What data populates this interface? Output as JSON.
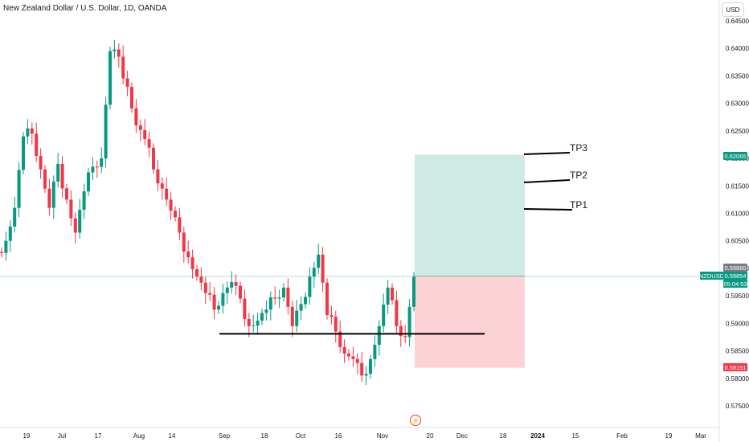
{
  "header": {
    "symbol_title": "New Zealand Dollar / U.S. Dollar, 1D, OANDA"
  },
  "axis": {
    "currency_button": "USD"
  },
  "events": {
    "flash_icon": "lightning-icon"
  },
  "colors": {
    "up": "#089981",
    "down": "#f23645",
    "profit_zone": "#cfeae5",
    "loss_zone": "#fbd3d6",
    "price_line": "#089981"
  },
  "chart_data": {
    "type": "candlestick",
    "title": "New Zealand Dollar / U.S. Dollar, 1D, OANDA",
    "y_ticks": [
      "0.64500",
      "0.64000",
      "0.63500",
      "0.63000",
      "0.62500",
      "0.62000",
      "0.61500",
      "0.61000",
      "0.60500",
      "0.60000",
      "0.59500",
      "0.59000",
      "0.58500",
      "0.58000",
      "0.57500"
    ],
    "x_ticks": [
      "19",
      "Jul",
      "17",
      "Aug",
      "14",
      "Sep",
      "18",
      "Oct",
      "16",
      "Nov",
      "20",
      "Dec",
      "18",
      "2024",
      "15",
      "Feb",
      "19",
      "Mar"
    ],
    "ylim": [
      0.5725,
      0.6475
    ],
    "series": [
      {
        "name": "NZDUSD",
        "type": "candlestick",
        "approx_close_path": [
          0.605,
          0.611,
          0.624,
          0.6245,
          0.618,
          0.611,
          0.619,
          0.6125,
          0.6065,
          0.614,
          0.6185,
          0.62,
          0.6395,
          0.6385,
          0.633,
          0.626,
          0.6235,
          0.618,
          0.6145,
          0.6105,
          0.6065,
          0.602,
          0.5985,
          0.5955,
          0.5925,
          0.5955,
          0.5975,
          0.5945,
          0.5895,
          0.5905,
          0.5925,
          0.5945,
          0.5965,
          0.5895,
          0.5935,
          0.5985,
          0.6025,
          0.5915,
          0.5885,
          0.5845,
          0.5835,
          0.5805,
          0.5835,
          0.5895,
          0.5965,
          0.5895,
          0.5875,
          0.5985
        ]
      }
    ],
    "horizontal_line": {
      "value": 0.5881
    },
    "position": {
      "entry": 0.5986,
      "stop": 0.58191,
      "target": 0.62065
    },
    "take_profits": [
      {
        "label": "TP3",
        "value": 0.6207
      },
      {
        "label": "TP2",
        "value": 0.6158
      },
      {
        "label": "TP1",
        "value": 0.6108
      }
    ],
    "price_labels": [
      {
        "text": "0.62065",
        "value": 0.62065,
        "color": "#089981"
      },
      {
        "text": "0.59860",
        "value": 0.5986,
        "color": "#787b86"
      },
      {
        "text": "NZDUSD",
        "value": 0.59854,
        "color": "#089981"
      },
      {
        "text": "0.59854",
        "value": 0.59854,
        "color": "#089981"
      },
      {
        "text": "05:04:53",
        "value": 0.5972,
        "color": "#089981"
      },
      {
        "text": "0.58191",
        "value": 0.58191,
        "color": "#f23645"
      }
    ],
    "grid": false
  }
}
